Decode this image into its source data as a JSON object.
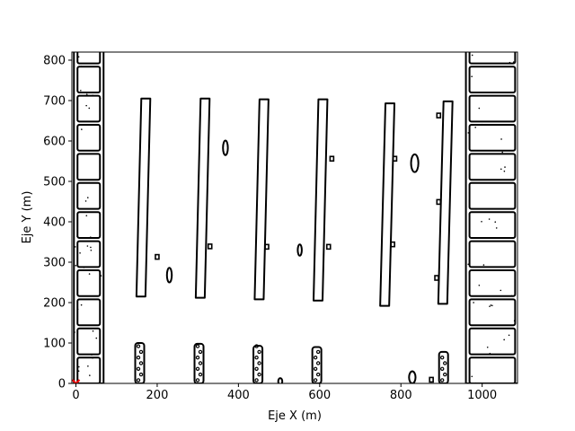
{
  "chart_data": {
    "type": "scatter",
    "title": "",
    "xlabel": "Eje X (m)",
    "ylabel": "Eje Y (m)",
    "xlim": [
      -10,
      1087
    ],
    "ylim": [
      0,
      820
    ],
    "xticks": [
      0,
      200,
      400,
      600,
      800,
      1000
    ],
    "yticks": [
      0,
      100,
      200,
      300,
      400,
      500,
      600,
      700,
      800
    ],
    "grid": false,
    "legend": "none",
    "colors": {
      "edges": "#000000",
      "background": "#ffffff",
      "origin_marker": "#ff0000"
    },
    "description_note": "",
    "origin_marker": {
      "x": 0,
      "y": 0
    },
    "elongated_rows": [
      {
        "x_bottom": 160,
        "x_top": 172,
        "y_bottom": 215,
        "y_top": 705
      },
      {
        "x_bottom": 306,
        "x_top": 318,
        "y_bottom": 212,
        "y_top": 705
      },
      {
        "x_bottom": 451,
        "x_top": 463,
        "y_bottom": 208,
        "y_top": 703
      },
      {
        "x_bottom": 596,
        "x_top": 608,
        "y_bottom": 205,
        "y_top": 703
      },
      {
        "x_bottom": 760,
        "x_top": 773,
        "y_bottom": 192,
        "y_top": 693
      },
      {
        "x_bottom": 903,
        "x_top": 916,
        "y_bottom": 197,
        "y_top": 698
      }
    ],
    "bottom_clusters": [
      {
        "x": 157,
        "y_top": 100
      },
      {
        "x": 303,
        "y_top": 98
      },
      {
        "x": 448,
        "y_top": 93
      },
      {
        "x": 593,
        "y_top": 90
      },
      {
        "x": 905,
        "y_top": 78
      }
    ],
    "ellipses": [
      {
        "x": 230,
        "y": 268,
        "rx": 6,
        "ry": 18
      },
      {
        "x": 368,
        "y": 583,
        "rx": 6,
        "ry": 18
      },
      {
        "x": 551,
        "y": 330,
        "rx": 5,
        "ry": 14
      },
      {
        "x": 834,
        "y": 545,
        "rx": 9,
        "ry": 22
      },
      {
        "x": 828,
        "y": 15,
        "rx": 8,
        "ry": 15
      },
      {
        "x": 503,
        "y": 5,
        "rx": 5,
        "ry": 8
      }
    ],
    "small_marks": [
      {
        "x": 200,
        "y": 312
      },
      {
        "x": 330,
        "y": 338
      },
      {
        "x": 470,
        "y": 337
      },
      {
        "x": 630,
        "y": 555
      },
      {
        "x": 622,
        "y": 337
      },
      {
        "x": 785,
        "y": 555
      },
      {
        "x": 780,
        "y": 343
      },
      {
        "x": 893,
        "y": 662
      },
      {
        "x": 893,
        "y": 448
      },
      {
        "x": 888,
        "y": 260
      },
      {
        "x": 875,
        "y": 8
      }
    ]
  }
}
